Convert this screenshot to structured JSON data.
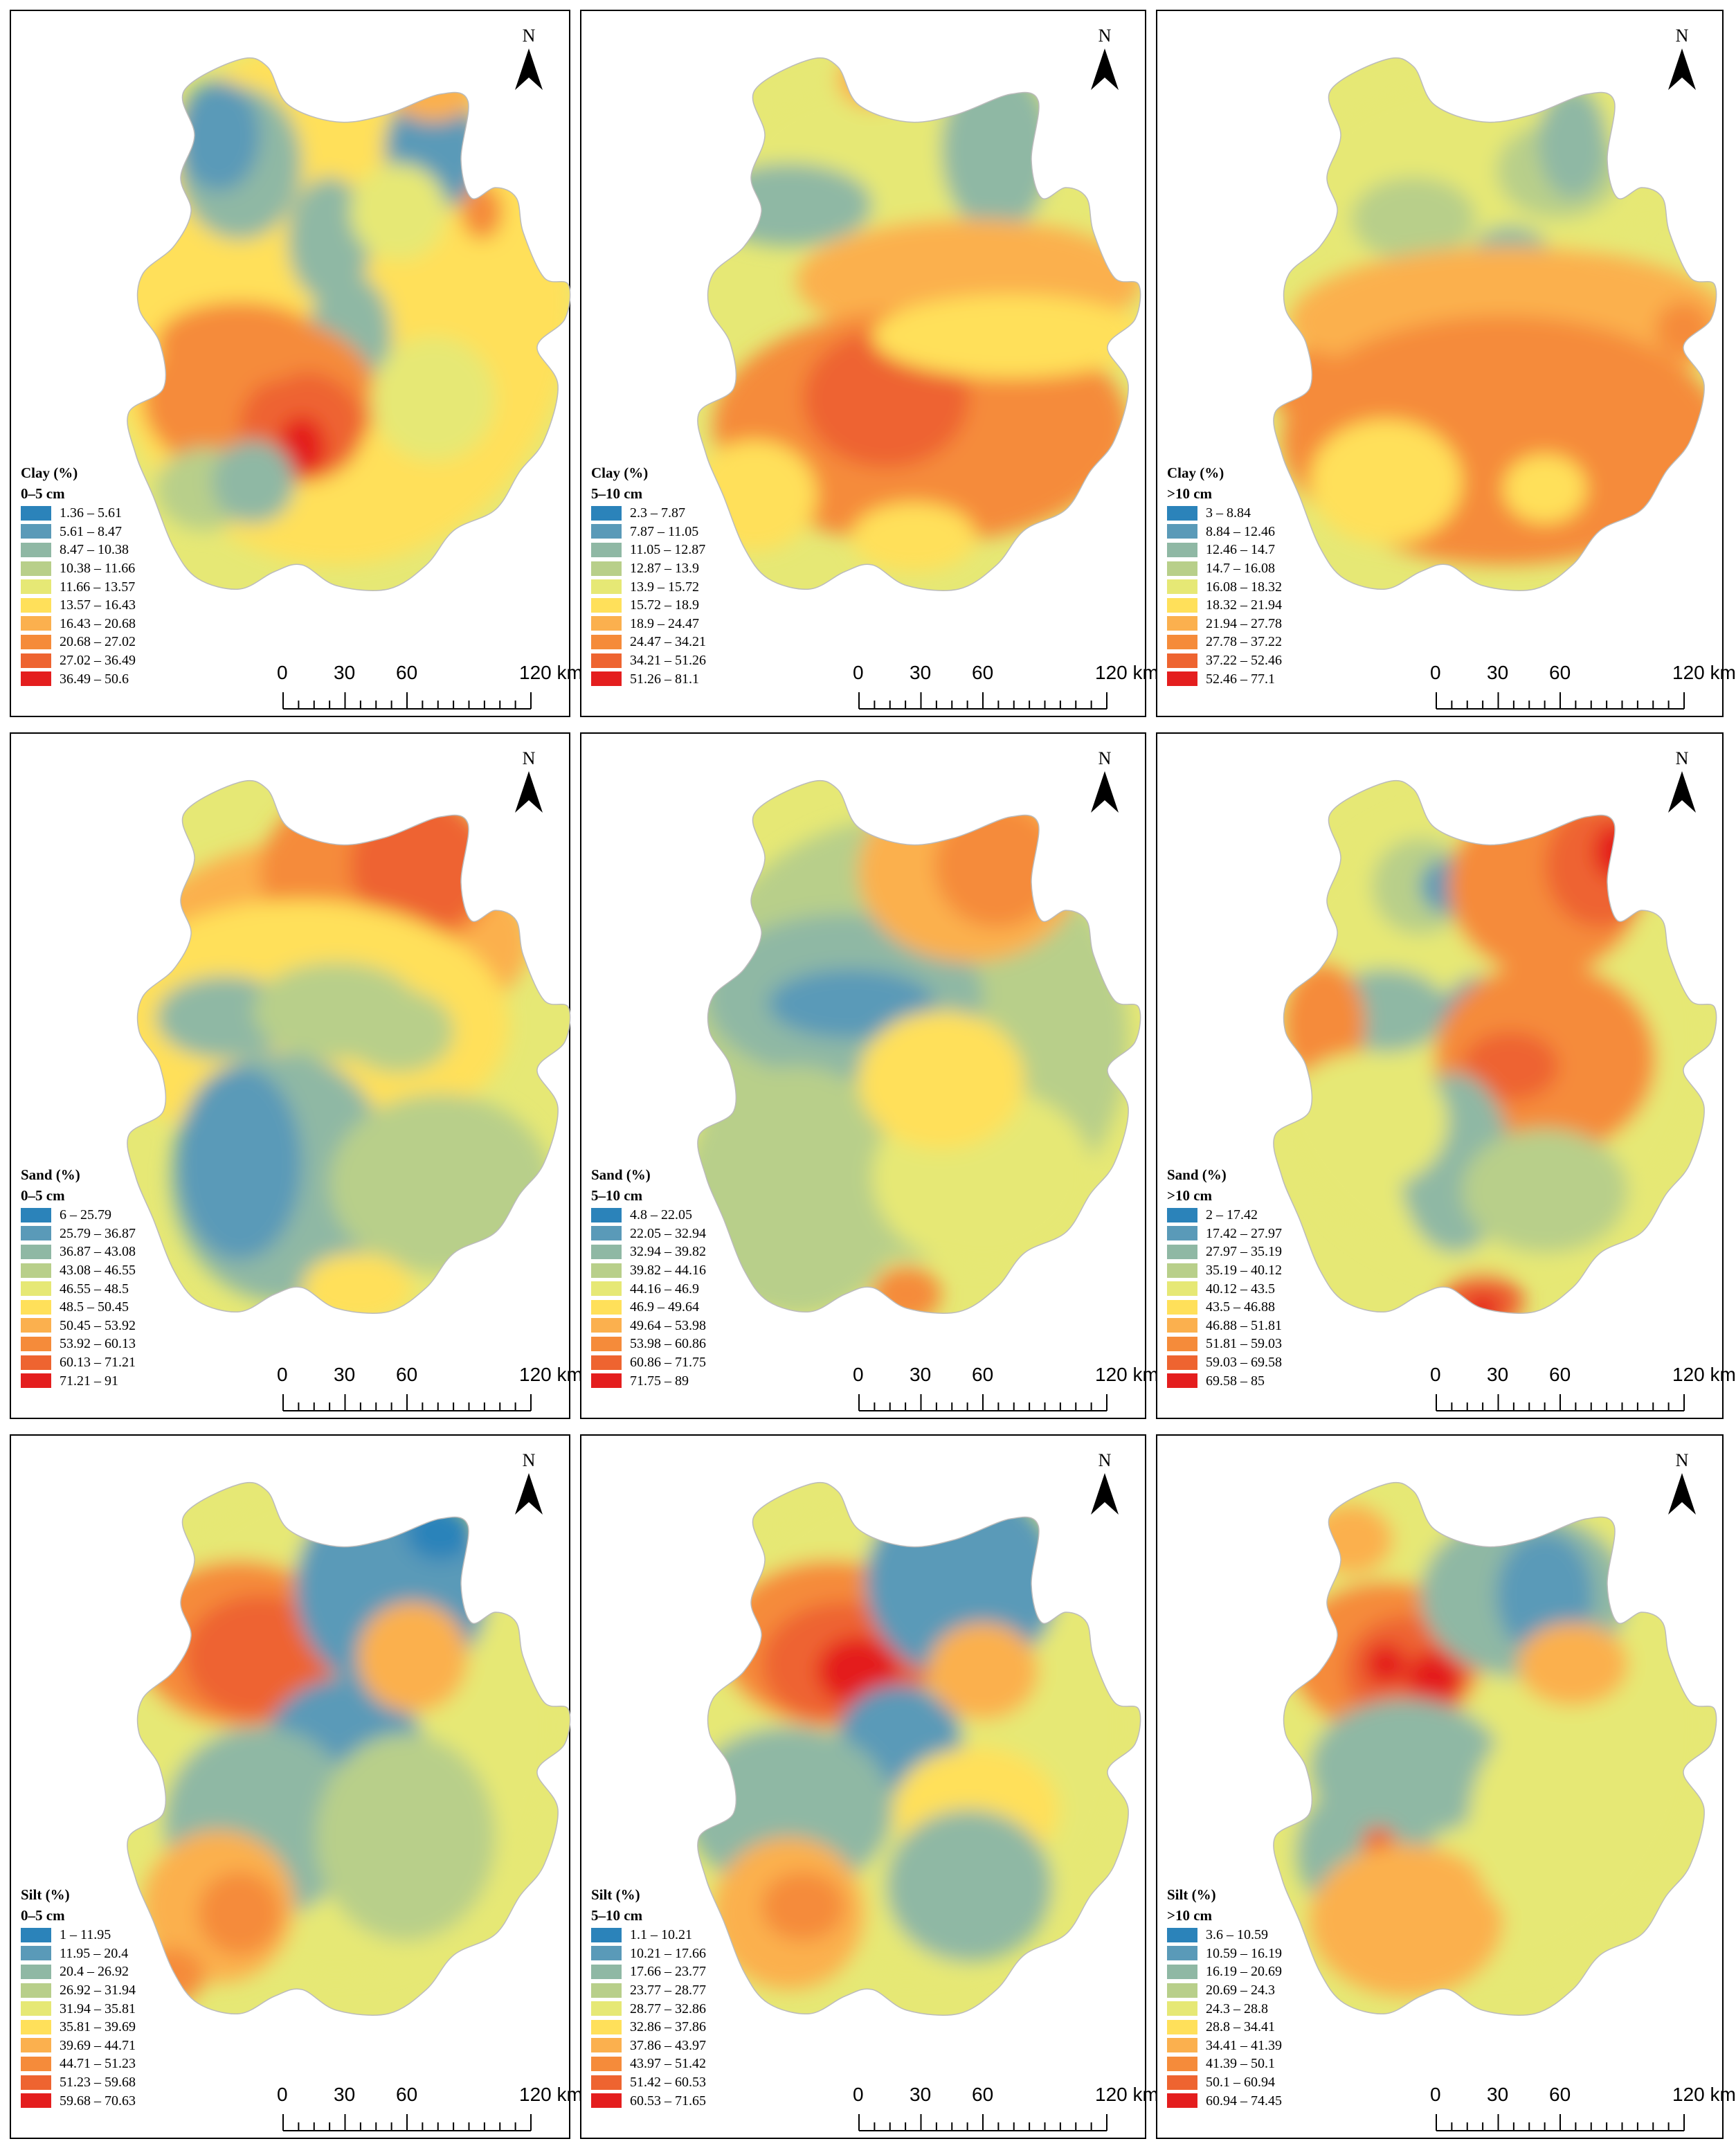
{
  "north_label": "N",
  "scale_labels": [
    "0",
    "30",
    "60",
    "120 km"
  ],
  "palette": [
    "#2b83ba",
    "#5a9ab8",
    "#8fb8a4",
    "#b8cf8a",
    "#e6e875",
    "#ffe05a",
    "#fbb04e",
    "#f58b3a",
    "#ee6430",
    "#e41e1e"
  ],
  "panels": [
    {
      "title": "Clay (%)",
      "depth": "0–5 cm",
      "classes": [
        "1.36 – 5.61",
        "5.61 – 8.47",
        "8.47 – 10.38",
        "10.38 – 11.66",
        "11.66 – 13.57",
        "13.57 – 16.43",
        "16.43 – 20.68",
        "20.68 – 27.02",
        "27.02 – 36.49",
        "36.49 – 50.6"
      ]
    },
    {
      "title": "Clay (%)",
      "depth": "5–10 cm",
      "classes": [
        "2.3 – 7.87",
        "7.87 – 11.05",
        "11.05 – 12.87",
        "12.87 – 13.9",
        "13.9 – 15.72",
        "15.72 – 18.9",
        "18.9 – 24.47",
        "24.47 – 34.21",
        "34.21 – 51.26",
        "51.26 – 81.1"
      ]
    },
    {
      "title": "Clay (%)",
      "depth": ">10 cm",
      "classes": [
        "3 – 8.84",
        "8.84 – 12.46",
        "12.46 – 14.7",
        "14.7 – 16.08",
        "16.08 – 18.32",
        "18.32 – 21.94",
        "21.94 – 27.78",
        "27.78 – 37.22",
        "37.22 – 52.46",
        "52.46 – 77.1"
      ]
    },
    {
      "title": "Sand (%)",
      "depth": "0–5 cm",
      "classes": [
        "6 – 25.79",
        "25.79 – 36.87",
        "36.87 – 43.08",
        "43.08 – 46.55",
        "46.55 – 48.5",
        "48.5 – 50.45",
        "50.45 – 53.92",
        "53.92 – 60.13",
        "60.13 – 71.21",
        "71.21 – 91"
      ]
    },
    {
      "title": "Sand (%)",
      "depth": "5–10 cm",
      "classes": [
        "4.8 – 22.05",
        "22.05 – 32.94",
        "32.94 – 39.82",
        "39.82 – 44.16",
        "44.16 – 46.9",
        "46.9 – 49.64",
        "49.64 – 53.98",
        "53.98 – 60.86",
        "60.86 – 71.75",
        "71.75 – 89"
      ]
    },
    {
      "title": "Sand (%)",
      "depth": ">10 cm",
      "classes": [
        "2 – 17.42",
        "17.42 – 27.97",
        "27.97 – 35.19",
        "35.19 – 40.12",
        "40.12 – 43.5",
        "43.5 – 46.88",
        "46.88 – 51.81",
        "51.81 – 59.03",
        "59.03 – 69.58",
        "69.58 – 85"
      ]
    },
    {
      "title": "Silt (%)",
      "depth": "0–5 cm",
      "classes": [
        "1 – 11.95",
        "11.95 – 20.4",
        "20.4 – 26.92",
        "26.92 – 31.94",
        "31.94 – 35.81",
        "35.81 – 39.69",
        "39.69 – 44.71",
        "44.71 – 51.23",
        "51.23 – 59.68",
        "59.68 – 70.63"
      ]
    },
    {
      "title": "Silt (%)",
      "depth": "5–10 cm",
      "classes": [
        "1.1 – 10.21",
        "10.21 – 17.66",
        "17.66 – 23.77",
        "23.77 – 28.77",
        "28.77 – 32.86",
        "32.86 – 37.86",
        "37.86 – 43.97",
        "43.97 – 51.42",
        "51.42 – 60.53",
        "60.53 – 71.65"
      ]
    },
    {
      "title": "Silt (%)",
      "depth": ">10 cm",
      "classes": [
        "3.6 – 10.59",
        "10.59 – 16.19",
        "16.19 – 20.69",
        "20.69 – 24.3",
        "24.3 – 28.8",
        "28.8 – 34.41",
        "34.41 – 41.39",
        "41.39 – 50.1",
        "50.1 – 60.94",
        "60.94 – 74.45"
      ]
    }
  ]
}
